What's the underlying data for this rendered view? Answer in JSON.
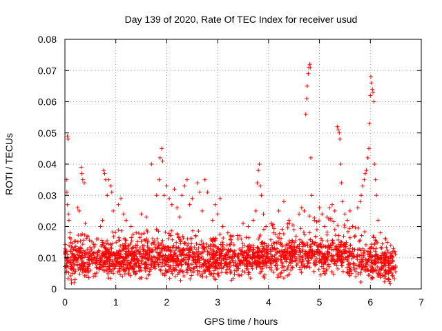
{
  "chart_data": {
    "type": "scatter",
    "title": "Day 139 of 2020, Rate Of TEC Index for receiver usud",
    "xlabel": "GPS time / hours",
    "ylabel": "ROTI / TECUs",
    "xlim": [
      0,
      7
    ],
    "ylim": [
      0,
      0.08
    ],
    "x_ticks": [
      "0",
      "1",
      "2",
      "3",
      "4",
      "5",
      "6",
      "7"
    ],
    "y_ticks": [
      "0",
      "0.01",
      "0.02",
      "0.03",
      "0.04",
      "0.05",
      "0.06",
      "0.07",
      "0.08"
    ],
    "grid": true,
    "marker": "+",
    "color": "#ff0000",
    "series": [
      {
        "points": [
          [
            0.02,
            0.012
          ],
          [
            0.03,
            0.035
          ],
          [
            0.04,
            0.031
          ],
          [
            0.05,
            0.049
          ],
          [
            0.06,
            0.048
          ],
          [
            0.05,
            0.027
          ],
          [
            0.07,
            0.024
          ],
          [
            0.08,
            0.022
          ],
          [
            0.1,
            0.018
          ],
          [
            0.12,
            0.016
          ],
          [
            0.15,
            0.005
          ],
          [
            0.18,
            0.002
          ],
          [
            0.2,
            0.003
          ],
          [
            0.25,
            0.026
          ],
          [
            0.28,
            0.025
          ],
          [
            0.32,
            0.039
          ],
          [
            0.33,
            0.037
          ],
          [
            0.35,
            0.035
          ],
          [
            0.38,
            0.034
          ],
          [
            0.4,
            0.021
          ],
          [
            0.45,
            0.017
          ],
          [
            0.5,
            0.006
          ],
          [
            0.6,
            0.008
          ],
          [
            0.65,
            0.016
          ],
          [
            0.7,
            0.02
          ],
          [
            0.74,
            0.022
          ],
          [
            0.76,
            0.038
          ],
          [
            0.78,
            0.037
          ],
          [
            0.8,
            0.035
          ],
          [
            0.83,
            0.03
          ],
          [
            0.86,
            0.035
          ],
          [
            0.9,
            0.033
          ],
          [
            0.92,
            0.031
          ],
          [
            0.95,
            0.025
          ],
          [
            1.05,
            0.027
          ],
          [
            1.1,
            0.029
          ],
          [
            1.15,
            0.024
          ],
          [
            1.2,
            0.022
          ],
          [
            1.3,
            0.02
          ],
          [
            1.4,
            0.018
          ],
          [
            1.5,
            0.024
          ],
          [
            1.6,
            0.023
          ],
          [
            1.7,
            0.04
          ],
          [
            1.8,
            0.03
          ],
          [
            1.85,
            0.035
          ],
          [
            1.87,
            0.042
          ],
          [
            1.9,
            0.045
          ],
          [
            1.92,
            0.041
          ],
          [
            1.95,
            0.03
          ],
          [
            2.0,
            0.033
          ],
          [
            2.05,
            0.029
          ],
          [
            2.1,
            0.027
          ],
          [
            2.15,
            0.032
          ],
          [
            2.2,
            0.026
          ],
          [
            2.25,
            0.023
          ],
          [
            2.3,
            0.03
          ],
          [
            2.35,
            0.033
          ],
          [
            2.4,
            0.035
          ],
          [
            2.45,
            0.027
          ],
          [
            2.5,
            0.029
          ],
          [
            2.6,
            0.034
          ],
          [
            2.65,
            0.031
          ],
          [
            2.7,
            0.025
          ],
          [
            2.75,
            0.035
          ],
          [
            2.8,
            0.031
          ],
          [
            2.9,
            0.022
          ],
          [
            2.95,
            0.027
          ],
          [
            3.0,
            0.024
          ],
          [
            3.05,
            0.029
          ],
          [
            3.1,
            0.02
          ],
          [
            3.2,
            0.018
          ],
          [
            3.3,
            0.017
          ],
          [
            3.4,
            0.016
          ],
          [
            3.5,
            0.021
          ],
          [
            3.6,
            0.02
          ],
          [
            3.7,
            0.022
          ],
          [
            3.75,
            0.025
          ],
          [
            3.78,
            0.034
          ],
          [
            3.8,
            0.038
          ],
          [
            3.82,
            0.04
          ],
          [
            3.84,
            0.033
          ],
          [
            3.86,
            0.03
          ],
          [
            3.9,
            0.024
          ],
          [
            3.95,
            0.02
          ],
          [
            4.05,
            0.021
          ],
          [
            4.1,
            0.018
          ],
          [
            4.2,
            0.025
          ],
          [
            4.3,
            0.028
          ],
          [
            4.4,
            0.022
          ],
          [
            4.5,
            0.019
          ],
          [
            4.6,
            0.024
          ],
          [
            4.65,
            0.026
          ],
          [
            4.7,
            0.025
          ],
          [
            4.73,
            0.056
          ],
          [
            4.75,
            0.061
          ],
          [
            4.76,
            0.065
          ],
          [
            4.78,
            0.069
          ],
          [
            4.79,
            0.071
          ],
          [
            4.81,
            0.072
          ],
          [
            4.82,
            0.071
          ],
          [
            4.83,
            0.042
          ],
          [
            4.85,
            0.03
          ],
          [
            4.9,
            0.022
          ],
          [
            4.95,
            0.019
          ],
          [
            5.0,
            0.026
          ],
          [
            5.05,
            0.024
          ],
          [
            5.1,
            0.02
          ],
          [
            5.15,
            0.023
          ],
          [
            5.2,
            0.026
          ],
          [
            5.25,
            0.027
          ],
          [
            5.3,
            0.025
          ],
          [
            5.35,
            0.052
          ],
          [
            5.37,
            0.051
          ],
          [
            5.39,
            0.05
          ],
          [
            5.4,
            0.048
          ],
          [
            5.42,
            0.04
          ],
          [
            5.43,
            0.034
          ],
          [
            5.45,
            0.028
          ],
          [
            5.5,
            0.024
          ],
          [
            5.55,
            0.022
          ],
          [
            5.6,
            0.025
          ],
          [
            5.65,
            0.02
          ],
          [
            5.7,
            0.017
          ],
          [
            5.75,
            0.026
          ],
          [
            5.8,
            0.028
          ],
          [
            5.82,
            0.03
          ],
          [
            5.85,
            0.033
          ],
          [
            5.88,
            0.035
          ],
          [
            5.9,
            0.037
          ],
          [
            5.92,
            0.038
          ],
          [
            5.95,
            0.042
          ],
          [
            5.97,
            0.045
          ],
          [
            5.98,
            0.053
          ],
          [
            6.0,
            0.062
          ],
          [
            6.01,
            0.068
          ],
          [
            6.02,
            0.066
          ],
          [
            6.04,
            0.064
          ],
          [
            6.05,
            0.063
          ],
          [
            6.07,
            0.06
          ],
          [
            6.08,
            0.04
          ],
          [
            6.1,
            0.035
          ],
          [
            6.12,
            0.03
          ],
          [
            6.15,
            0.022
          ],
          [
            6.2,
            0.018
          ],
          [
            6.3,
            0.016
          ],
          [
            6.4,
            0.014
          ],
          [
            6.45,
            0.013
          ],
          [
            6.48,
            0.012
          ]
        ],
        "band": {
          "x_range": [
            0.0,
            6.5
          ],
          "count": 2800,
          "seed": 139,
          "y_levels": [
            [
              0.0,
              0.0045,
              0.009,
              0.015
            ],
            [
              0.5,
              0.0045,
              0.009,
              0.016
            ],
            [
              1.0,
              0.0045,
              0.0095,
              0.017
            ],
            [
              1.5,
              0.0045,
              0.0095,
              0.017
            ],
            [
              2.0,
              0.0045,
              0.0095,
              0.017
            ],
            [
              2.5,
              0.0045,
              0.0095,
              0.017
            ],
            [
              3.0,
              0.0045,
              0.0095,
              0.016
            ],
            [
              3.5,
              0.0045,
              0.0095,
              0.016
            ],
            [
              4.0,
              0.0045,
              0.01,
              0.018
            ],
            [
              4.5,
              0.0045,
              0.011,
              0.02
            ],
            [
              5.0,
              0.0045,
              0.011,
              0.021
            ],
            [
              5.5,
              0.0045,
              0.01,
              0.019
            ],
            [
              6.0,
              0.004,
              0.0085,
              0.016
            ],
            [
              6.5,
              0.004,
              0.008,
              0.014
            ]
          ]
        }
      }
    ]
  }
}
